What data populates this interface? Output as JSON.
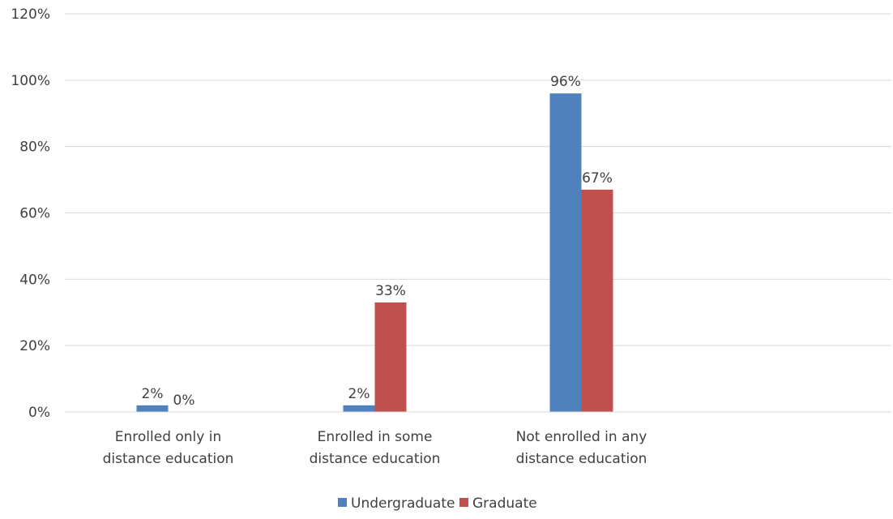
{
  "chart_data": {
    "type": "bar",
    "categories": [
      [
        "Enrolled only in",
        "distance education"
      ],
      [
        "Enrolled in some",
        "distance education"
      ],
      [
        "Not enrolled in any",
        "distance education"
      ],
      [
        "",
        ""
      ]
    ],
    "series": [
      {
        "name": "Undergraduate",
        "values": [
          2,
          2,
          96,
          null
        ],
        "labels": [
          "2%",
          "2%",
          "96%",
          ""
        ],
        "color": "#4F81BD"
      },
      {
        "name": "Graduate",
        "values": [
          0,
          33,
          67,
          null
        ],
        "labels": [
          "0%",
          "33%",
          "67%",
          ""
        ],
        "color": "#C0504D"
      }
    ],
    "ylim": [
      0,
      120
    ],
    "yticks": [
      0,
      20,
      40,
      60,
      80,
      100,
      120
    ],
    "ytick_labels": [
      "0%",
      "20%",
      "40%",
      "60%",
      "80%",
      "100%",
      "120%"
    ],
    "grid": true,
    "legend_position": "bottom",
    "title": "",
    "xlabel": "",
    "ylabel": ""
  }
}
